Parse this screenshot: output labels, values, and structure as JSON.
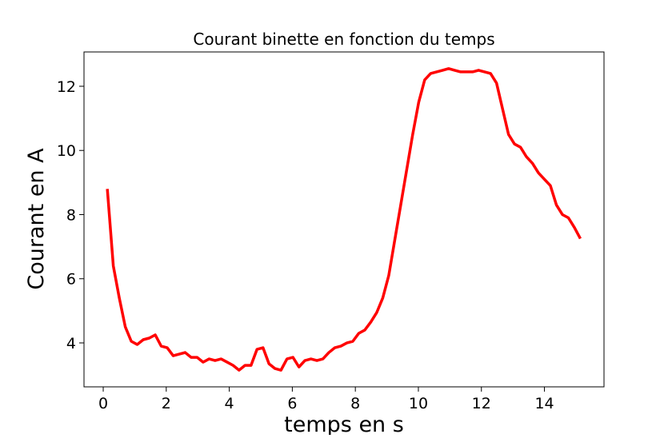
{
  "chart_data": {
    "type": "line",
    "title": "Courant binette en fonction du temps",
    "xlabel": "temps en s",
    "ylabel": "Courant en A",
    "x": [
      0.13,
      0.32,
      0.51,
      0.7,
      0.89,
      1.08,
      1.27,
      1.46,
      1.65,
      1.84,
      2.03,
      2.22,
      2.41,
      2.6,
      2.79,
      2.98,
      3.17,
      3.36,
      3.55,
      3.74,
      3.93,
      4.12,
      4.31,
      4.5,
      4.69,
      4.88,
      5.07,
      5.26,
      5.45,
      5.64,
      5.83,
      6.02,
      6.21,
      6.4,
      6.59,
      6.78,
      6.97,
      7.16,
      7.35,
      7.54,
      7.73,
      7.92,
      8.11,
      8.3,
      8.49,
      8.68,
      8.87,
      9.06,
      9.25,
      9.44,
      9.63,
      9.82,
      10.01,
      10.2,
      10.39,
      10.58,
      10.77,
      10.96,
      11.15,
      11.34,
      11.53,
      11.72,
      11.91,
      12.1,
      12.29,
      12.48,
      12.67,
      12.86,
      13.05,
      13.24,
      13.43,
      13.62,
      13.81,
      14.0,
      14.19,
      14.38,
      14.57,
      14.76,
      14.95,
      15.14
    ],
    "series": [
      {
        "name": "Courant",
        "color": "#ff0000",
        "values": [
          8.8,
          6.4,
          5.4,
          4.5,
          4.05,
          3.95,
          4.1,
          4.15,
          4.25,
          3.9,
          3.85,
          3.6,
          3.65,
          3.7,
          3.55,
          3.55,
          3.4,
          3.5,
          3.45,
          3.5,
          3.4,
          3.3,
          3.15,
          3.3,
          3.3,
          3.8,
          3.85,
          3.35,
          3.2,
          3.15,
          3.5,
          3.55,
          3.25,
          3.45,
          3.5,
          3.45,
          3.5,
          3.7,
          3.85,
          3.9,
          4.0,
          4.05,
          4.3,
          4.4,
          4.65,
          4.95,
          5.4,
          6.1,
          7.2,
          8.3,
          9.4,
          10.5,
          11.5,
          12.2,
          12.4,
          12.45,
          12.5,
          12.55,
          12.5,
          12.45,
          12.45,
          12.45,
          12.5,
          12.45,
          12.4,
          12.1,
          11.3,
          10.5,
          10.2,
          10.1,
          9.8,
          9.6,
          9.3,
          9.1,
          8.9,
          8.3,
          8.0,
          7.9,
          7.6,
          7.25
        ]
      }
    ],
    "xlim": [
      -0.61,
      15.89
    ],
    "ylim": [
      2.63,
      13.07
    ],
    "xticks": [
      0,
      2,
      4,
      6,
      8,
      10,
      12,
      14
    ],
    "yticks": [
      4,
      6,
      8,
      10,
      12
    ],
    "grid": false
  }
}
